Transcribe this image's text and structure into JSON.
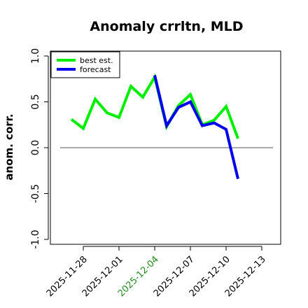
{
  "chart_data": {
    "type": "line",
    "title": "Anomaly crrltn, MLD",
    "ylabel": "anom. corr.",
    "xlabel": "",
    "ylim": [
      -1.0,
      1.0
    ],
    "yticks": [
      "-1.0",
      "-0.5",
      "0.0",
      "0.5",
      "1.0"
    ],
    "xticks": [
      "2025-11-28",
      "2025-12-01",
      "2025-12-04",
      "2025-12-07",
      "2025-12-10",
      "2025-12-13"
    ],
    "highlight_xtick": "2025-12-04",
    "highlight_color": "#228b22",
    "reference_line": 0.0,
    "legend_position": "top-left",
    "series": [
      {
        "name": "best est.",
        "color": "#00ee00",
        "x": [
          "2025-11-27",
          "2025-11-28",
          "2025-11-29",
          "2025-11-30",
          "2025-12-01",
          "2025-12-02",
          "2025-12-03",
          "2025-12-04",
          "2025-12-05",
          "2025-12-06",
          "2025-12-07",
          "2025-12-08",
          "2025-12-09",
          "2025-12-10",
          "2025-12-11"
        ],
        "values": [
          0.31,
          0.21,
          0.53,
          0.38,
          0.33,
          0.67,
          0.55,
          0.77,
          0.23,
          0.46,
          0.58,
          0.25,
          0.3,
          0.45,
          0.1
        ]
      },
      {
        "name": "forecast",
        "color": "#0000ee",
        "x": [
          "2025-12-04",
          "2025-12-05",
          "2025-12-06",
          "2025-12-07",
          "2025-12-08",
          "2025-12-09",
          "2025-12-10",
          "2025-12-11"
        ],
        "values": [
          0.79,
          0.24,
          0.44,
          0.5,
          0.24,
          0.27,
          0.2,
          -0.34
        ]
      }
    ]
  }
}
